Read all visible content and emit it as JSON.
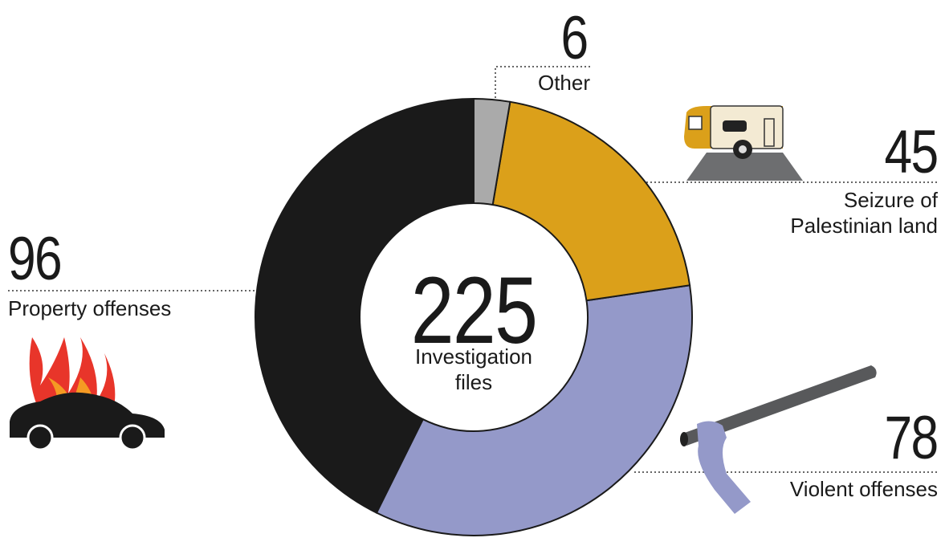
{
  "chart_data": {
    "type": "donut",
    "categories": [
      "Other",
      "Seizure of Palestinian land",
      "Violent offenses",
      "Property offenses"
    ],
    "values": [
      6,
      45,
      78,
      96
    ],
    "colors": [
      "#aaaaaa",
      "#dba01a",
      "#9499c9",
      "#1a1a1a"
    ],
    "center_value": 225,
    "center_label": "Investigation files"
  }
}
